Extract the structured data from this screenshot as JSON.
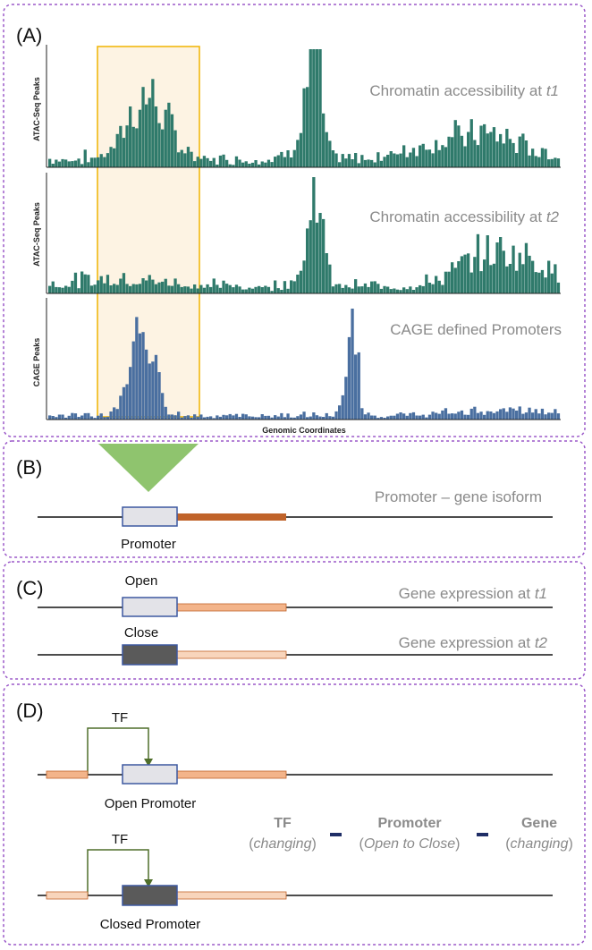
{
  "panels": {
    "a": {
      "label": "(A)",
      "tracks": [
        {
          "ylabel": "ATAC-Seq Peaks",
          "title_main": "Chromatin accessibility at ",
          "title_italic": "t1"
        },
        {
          "ylabel": "ATAC-Seq Peaks",
          "title_main": "Chromatin accessibility at ",
          "title_italic": "t2"
        },
        {
          "ylabel": "CAGE Peaks",
          "title_main": "CAGE defined Promoters",
          "title_italic": ""
        }
      ],
      "xlabel": "Genomic Coordinates"
    },
    "b": {
      "label": "(B)",
      "title": "Promoter – gene isoform",
      "promoter_label": "Promoter"
    },
    "c": {
      "label": "(C)",
      "open_label": "Open",
      "close_label": "Close",
      "expr_t1_main": "Gene expression at ",
      "expr_t1_italic": "t1",
      "expr_t2_main": "Gene expression at ",
      "expr_t2_italic": "t2"
    },
    "d": {
      "label": "(D)",
      "tf_label_1": "TF",
      "tf_label_2": "TF",
      "open_promoter_label": "Open Promoter",
      "closed_promoter_label": "Closed Promoter",
      "legend": {
        "tf_title": "TF",
        "tf_sub": "changing",
        "promoter_title": "Promoter",
        "promoter_sub": "Open to Close",
        "gene_title": "Gene",
        "gene_sub": "changing"
      }
    }
  },
  "colors": {
    "frame": "#9b59c9",
    "highlight_border": "#f0b400",
    "highlight_fill": "#fdf3e3",
    "atac_bars": "#2f7a6b",
    "cage_bars": "#4a6fa0",
    "callout": "#8fc46e",
    "gene_dark": "#c0632a",
    "gene_light": "#f3b48a",
    "gene_pale": "#f8d5bc",
    "promoter_open_fill": "#e3e3e8",
    "promoter_closed_fill": "#5a5a5a",
    "promoter_border": "#3d58a0",
    "tf_arrow": "#4f6e2a",
    "legend_dash": "#1f2e66",
    "gray_text": "#8a8a8a"
  }
}
